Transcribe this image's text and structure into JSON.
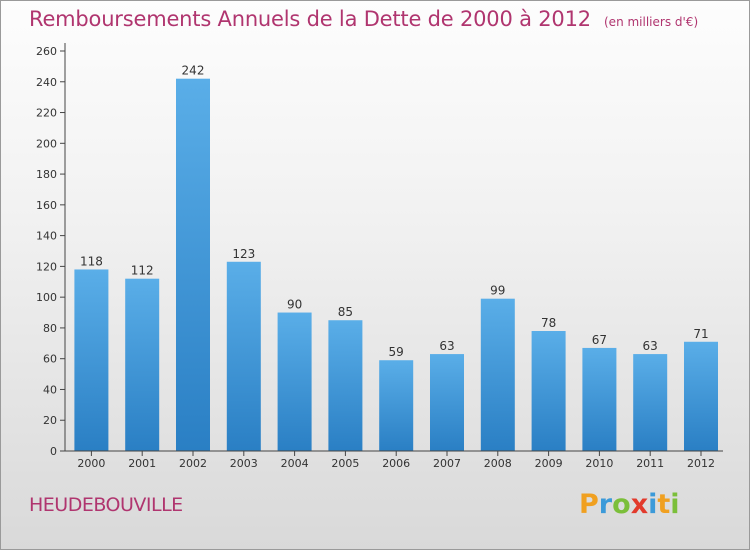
{
  "title": "Remboursements Annuels de la Dette de 2000 à 2012",
  "subtitle": "(en milliers d'€)",
  "commune": "HEUDEBOUVILLE",
  "logo": {
    "letters": [
      "P",
      "r",
      "o",
      "x",
      "i",
      "t",
      "i"
    ],
    "colors": [
      "#f0a020",
      "#3b9ad9",
      "#7bbf3a",
      "#e23a2c",
      "#3b9ad9",
      "#f0a020",
      "#7bbf3a"
    ]
  },
  "colors": {
    "bar_top": "#5aaee8",
    "bar_bottom": "#2a7fc4",
    "title": "#b0356f"
  },
  "chart_data": {
    "type": "bar",
    "categories": [
      "2000",
      "2001",
      "2002",
      "2003",
      "2004",
      "2005",
      "2006",
      "2007",
      "2008",
      "2009",
      "2010",
      "2011",
      "2012"
    ],
    "values": [
      118,
      112,
      242,
      123,
      90,
      85,
      59,
      63,
      99,
      78,
      67,
      63,
      71
    ],
    "data_labels": [
      "118",
      "112",
      "242",
      "123",
      "90",
      "85",
      "59",
      "63",
      "99",
      "78",
      "67",
      "63",
      "71"
    ],
    "yticks": [
      "0",
      "20",
      "40",
      "60",
      "80",
      "100",
      "120",
      "140",
      "160",
      "180",
      "200",
      "220",
      "240",
      "260"
    ],
    "ylim": [
      0,
      260
    ],
    "grid": false
  }
}
